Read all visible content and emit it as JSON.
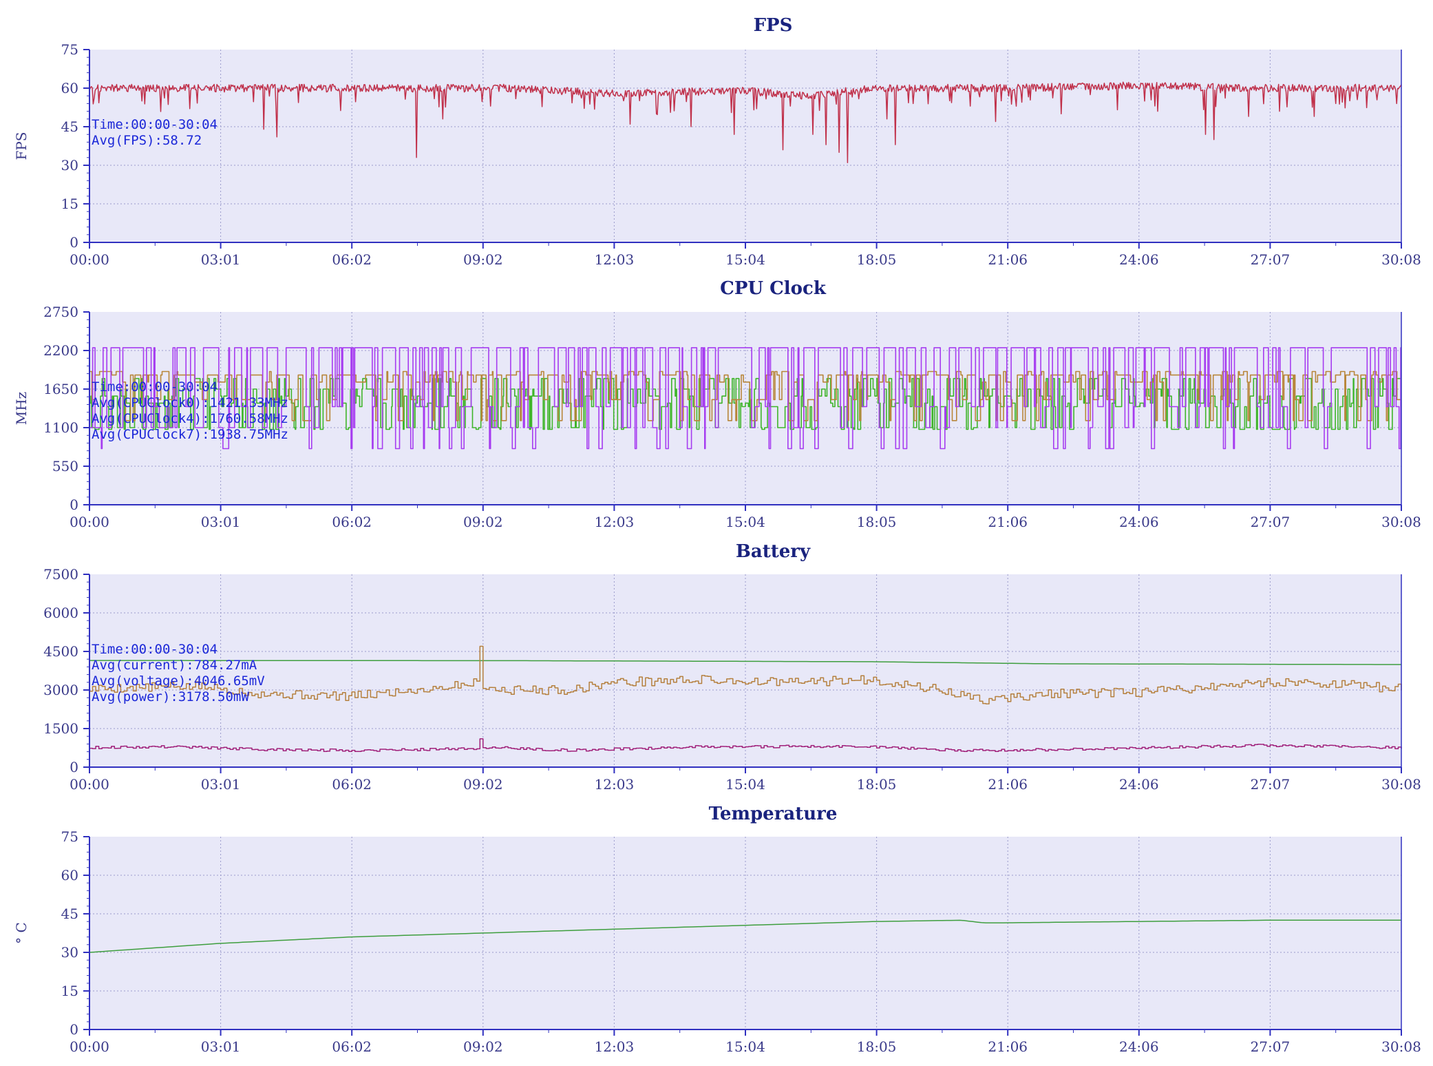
{
  "colors": {
    "plot_bg": "#e8e8f8",
    "axis": "#3030c0",
    "grid": "#9a9acb",
    "fps": "#c0304a",
    "cpu0": "#3fb52a",
    "cpu4": "#b8863a",
    "cpu7": "#a63cf0",
    "battery_voltage": "#3e9e3e",
    "battery_power": "#b5803e",
    "battery_current": "#a0207a",
    "temperature": "#3e9e3e",
    "annotation": "#1c28d8"
  },
  "chart_data": [
    {
      "id": "fps",
      "type": "line",
      "title": "FPS",
      "ylabel": "FPS",
      "ylim": [
        0,
        75
      ],
      "yticks": [
        "0",
        "15",
        "30",
        "45",
        "60",
        "75"
      ],
      "xticks": [
        "00:00",
        "03:01",
        "06:02",
        "09:02",
        "12:03",
        "15:04",
        "18:05",
        "21:06",
        "24:06",
        "27:07",
        "30:08"
      ],
      "grid": true,
      "annotations": [
        "Time:00:00-30:04",
        "Avg(FPS):58.72"
      ],
      "series": [
        {
          "key": "fps",
          "color_key": "fps",
          "style": "noisy",
          "base": [
            [
              0,
              60
            ],
            [
              3.5,
              60
            ],
            [
              6,
              60
            ],
            [
              9.5,
              60
            ],
            [
              12,
              58
            ],
            [
              15,
              59
            ],
            [
              16.5,
              57
            ],
            [
              18,
              60
            ],
            [
              21,
              60
            ],
            [
              24,
              61
            ],
            [
              27,
              60
            ],
            [
              30.1,
              60
            ]
          ],
          "noise": 1.5,
          "dips": [
            [
              0.1,
              56
            ],
            [
              1.2,
              55
            ],
            [
              2.3,
              52
            ],
            [
              4.0,
              44
            ],
            [
              4.3,
              41
            ],
            [
              7.5,
              33
            ],
            [
              8.1,
              48
            ],
            [
              9.2,
              53
            ],
            [
              12.4,
              46
            ],
            [
              13.0,
              50
            ],
            [
              13.8,
              45
            ],
            [
              14.8,
              42
            ],
            [
              15.3,
              52
            ],
            [
              15.9,
              36
            ],
            [
              16.6,
              42
            ],
            [
              16.9,
              38
            ],
            [
              17.2,
              35
            ],
            [
              17.4,
              31
            ],
            [
              18.3,
              48
            ],
            [
              18.5,
              38
            ],
            [
              18.9,
              54
            ],
            [
              20.2,
              53
            ],
            [
              20.8,
              47
            ],
            [
              22.3,
              50
            ],
            [
              24.5,
              51
            ],
            [
              25.6,
              42
            ],
            [
              25.8,
              40
            ],
            [
              26.6,
              49
            ],
            [
              27.3,
              51
            ],
            [
              28.1,
              49
            ],
            [
              28.6,
              54
            ],
            [
              30.0,
              54
            ]
          ]
        }
      ]
    },
    {
      "id": "cpu",
      "type": "line",
      "title": "CPU Clock",
      "ylabel": "MHz",
      "ylim": [
        0,
        2750
      ],
      "yticks": [
        "0",
        "550",
        "1100",
        "1650",
        "2200",
        "2750"
      ],
      "xticks": [
        "00:00",
        "03:01",
        "06:02",
        "09:02",
        "12:03",
        "15:04",
        "18:05",
        "21:06",
        "24:06",
        "27:07",
        "30:08"
      ],
      "grid": true,
      "annotations": [
        "Time:00:00-30:04",
        "Avg(CPUClock0):1421.33MHz",
        "Avg(CPUClock4):1760.58MHz",
        "Avg(CPUClock7):1938.75MHz"
      ],
      "series": [
        {
          "key": "cpu0",
          "color_key": "cpu0",
          "style": "square",
          "levels": [
            1075,
            1450,
            1550,
            1800,
            1400,
            1100,
            1650
          ],
          "period_min": 0.05,
          "seed": 11
        },
        {
          "key": "cpu4",
          "color_key": "cpu4",
          "style": "square",
          "levels": [
            1850,
            1900,
            1750,
            1500,
            1850,
            1200,
            1850
          ],
          "period_min": 0.07,
          "seed": 23
        },
        {
          "key": "cpu7",
          "color_key": "cpu7",
          "style": "square",
          "levels": [
            2240,
            2240,
            1100,
            2240,
            800,
            2240,
            1400,
            2240
          ],
          "period_min": 0.06,
          "seed": 37
        }
      ]
    },
    {
      "id": "battery",
      "type": "line",
      "title": "Battery",
      "ylabel": "",
      "ylim": [
        0,
        7500
      ],
      "yticks": [
        "0",
        "1500",
        "3000",
        "4500",
        "6000",
        "7500"
      ],
      "xticks": [
        "00:00",
        "03:01",
        "06:02",
        "09:02",
        "12:03",
        "15:04",
        "18:05",
        "21:06",
        "24:06",
        "27:07",
        "30:08"
      ],
      "grid": true,
      "annotations": [
        "Time:00:00-30:04",
        "Avg(current):784.27mA",
        "Avg(voltage):4046.65mV",
        "Avg(power):3178.50mW"
      ],
      "series": [
        {
          "key": "voltage",
          "color_key": "battery_voltage",
          "style": "smooth",
          "points": [
            [
              0,
              4150
            ],
            [
              10,
              4140
            ],
            [
              18,
              4100
            ],
            [
              22,
              4020
            ],
            [
              30.1,
              3990
            ]
          ]
        },
        {
          "key": "power",
          "color_key": "battery_power",
          "style": "step",
          "noise": 180,
          "seed": 5,
          "base": [
            [
              0,
              3050
            ],
            [
              2.5,
              3150
            ],
            [
              4,
              2850
            ],
            [
              6,
              2750
            ],
            [
              8,
              3100
            ],
            [
              8.9,
              3300
            ],
            [
              9.3,
              3000
            ],
            [
              11,
              3000
            ],
            [
              12,
              3300
            ],
            [
              14,
              3400
            ],
            [
              16,
              3300
            ],
            [
              18,
              3400
            ],
            [
              19.5,
              3000
            ],
            [
              20.5,
              2600
            ],
            [
              22,
              2850
            ],
            [
              24,
              2900
            ],
            [
              25.5,
              3100
            ],
            [
              27,
              3300
            ],
            [
              28,
              3300
            ],
            [
              30.1,
              3050
            ]
          ],
          "spikes": [
            [
              8.95,
              4700
            ]
          ]
        },
        {
          "key": "current",
          "color_key": "battery_current",
          "style": "step",
          "noise": 50,
          "seed": 9,
          "base": [
            [
              0,
              760
            ],
            [
              2,
              800
            ],
            [
              4,
              680
            ],
            [
              6,
              650
            ],
            [
              8,
              700
            ],
            [
              9.5,
              760
            ],
            [
              11,
              650
            ],
            [
              14,
              800
            ],
            [
              18,
              800
            ],
            [
              20,
              640
            ],
            [
              22,
              680
            ],
            [
              25,
              780
            ],
            [
              27,
              850
            ],
            [
              30.1,
              760
            ]
          ],
          "spikes": [
            [
              8.95,
              1100
            ]
          ]
        }
      ]
    },
    {
      "id": "temperature",
      "type": "line",
      "title": "Temperature",
      "ylabel": "° C",
      "ylim": [
        0,
        75
      ],
      "yticks": [
        "0",
        "15",
        "30",
        "45",
        "60",
        "75"
      ],
      "xticks": [
        "00:00",
        "03:01",
        "06:02",
        "09:02",
        "12:03",
        "15:04",
        "18:05",
        "21:06",
        "24:06",
        "27:07",
        "30:08"
      ],
      "grid": true,
      "annotations": [],
      "series": [
        {
          "key": "temp",
          "color_key": "temperature",
          "style": "smooth",
          "points": [
            [
              0,
              30
            ],
            [
              3,
              33.5
            ],
            [
              6,
              36
            ],
            [
              9,
              37.5
            ],
            [
              12,
              39
            ],
            [
              15,
              40.5
            ],
            [
              18,
              42
            ],
            [
              20,
              42.5
            ],
            [
              20.5,
              41.5
            ],
            [
              21,
              41.5
            ],
            [
              24,
              42
            ],
            [
              27,
              42.5
            ],
            [
              30.1,
              42.5
            ]
          ]
        }
      ]
    }
  ]
}
